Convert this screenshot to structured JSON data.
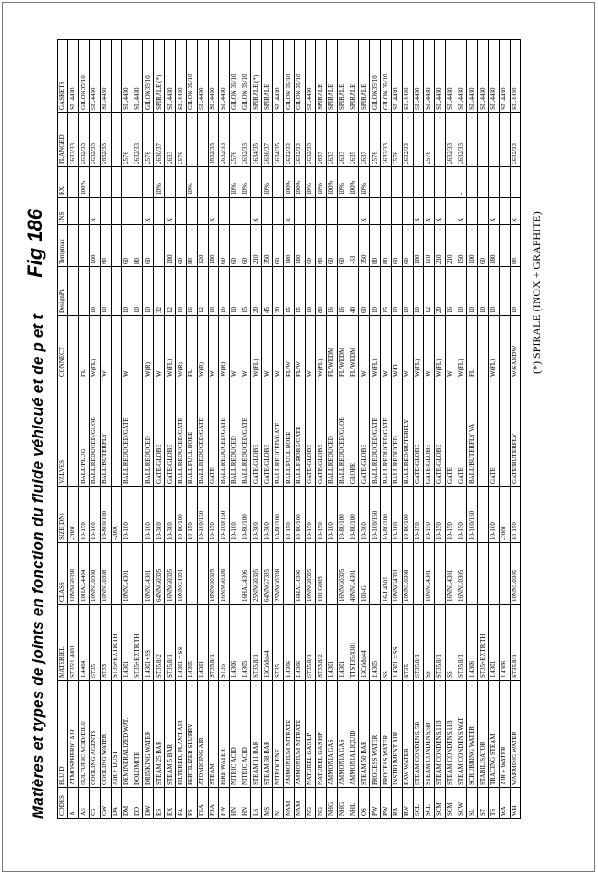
{
  "title": "Matières et types de joints en fonction du fluide véhicué et de p et t",
  "fig_label": "Fig 186",
  "footnote": "(*) SPIRALE (INOX + GRAPHITE)",
  "columns": [
    "CODES",
    "FLUID",
    "MATERIEL",
    "CLASS",
    "SIZE(DN)",
    "VALVES",
    "CONNECT",
    "DesignPr.",
    "Tempmax",
    "INS",
    "RX",
    "FLANGED",
    "GASKETS"
  ],
  "rows": [
    [
      "A",
      "ATMOSPHERIC AIR",
      "ST35/1.4301",
      "10NNG0308",
      "-2000",
      "",
      "",
      "",
      "",
      "",
      "",
      "2632/33",
      "SIL4430"
    ],
    [
      "AS",
      "SULFURIC ACID/DILU",
      "1.4404",
      "10HAL4404",
      "10-150",
      "BALL/PLUG",
      "FL",
      "",
      "",
      "",
      "100%",
      "2632/33",
      "GILON35/10"
    ],
    [
      "CS",
      "COOLING AGENTS",
      "ST35",
      "10NNL0308",
      "10-100",
      "BALL REDUCED/GLOB",
      "W(FL)",
      "10",
      "100",
      "X",
      "",
      "2632/33",
      "SIL4430"
    ],
    [
      "CW",
      "COOLING WATER",
      "ST35",
      "10NNL0308",
      "10-800/100",
      "BALL/BUTERFLY",
      "W",
      "10",
      "60",
      "",
      "",
      "2632/33",
      "SIL4430"
    ],
    [
      "DA",
      "AIR + DUST",
      "ST35+EXTR.TH",
      "",
      "-2000",
      "",
      "",
      "",
      "",
      "",
      "",
      "",
      ""
    ],
    [
      "DM",
      "DEMINERALIZED WAT.",
      "1.4301",
      "10NNL4301",
      "10-100",
      "BALL REDUCED/GATE",
      "W",
      "10",
      "60",
      "",
      "",
      "2576",
      "SIL4430"
    ],
    [
      "DO",
      "DOLOMITE",
      "ST35+EXTR.TH",
      "",
      "",
      "",
      "",
      "10",
      "80",
      "",
      "",
      "2632/33",
      "SIL4430"
    ],
    [
      "DW",
      "DRINKING WATER",
      "1.4301+SS",
      "10NNL4301",
      "10-100",
      "BALL REDUCED",
      "W(R)",
      "10",
      "60",
      "X",
      "",
      "2576",
      "GILON35/10"
    ],
    [
      "ES",
      "STEAM 25 BAR",
      "ST35.8/2",
      "64NNG0305",
      "10-300",
      "GATE-GLOBE",
      "W",
      "32",
      "",
      "",
      "10%",
      "2630/37",
      "SPIRALE (*)"
    ],
    [
      "EX",
      "STEAM 5 BAR",
      "ST35.8/1",
      "16NNG0305",
      "10-300",
      "GATE-GLOBE",
      "W(FL)",
      "12",
      "180",
      "X",
      "",
      "2633",
      "SIL4430"
    ],
    [
      "FA",
      "FILTERED, PLANT AIR",
      "1.4301 = SS",
      "10NNG4301",
      "10-80/100",
      "BALL REDUCED/GATE",
      "W(R)",
      "10",
      "60",
      "",
      "",
      "2576",
      "SIL4430"
    ],
    [
      "FS",
      "FERTILIZER SLURRY",
      "1.4305",
      "",
      "10-150",
      "BALL FULL BORE",
      "FL",
      "16",
      "80",
      "",
      "10%",
      "",
      "GILON 35/10"
    ],
    [
      "FSA",
      "ATOMICING AIR",
      "1.4301",
      "",
      "10-100/150",
      "BALL REDUCED/GATE",
      "W(R)",
      "12",
      "120",
      "",
      "",
      "",
      "SIL4430"
    ],
    [
      "FSA",
      "STEAM",
      "ST35.8/1",
      "16NNG0305",
      "10-150",
      "GATE",
      "W",
      "16",
      "180",
      "X",
      "",
      "1632/33",
      "SIL4430"
    ],
    [
      "FW",
      "FIRE WATER",
      "ST35",
      "16NNG0308",
      "10-100/150",
      "BALL REDUCED/GATE",
      "W(R)",
      "16",
      "60",
      "",
      "",
      "2632/33",
      "SIL4430"
    ],
    [
      "HN",
      "NITRIC ACID",
      "1.4306",
      "",
      "10-100",
      "BALL REDUCED",
      "W",
      "10",
      "60",
      "",
      "10%",
      "2576",
      "GILON 35/10"
    ],
    [
      "HN",
      "NITRIC ACID",
      "1.4305",
      "16HAL4306",
      "10-80/100",
      "BALL REDUCED/GATE",
      "W",
      "15",
      "60",
      "",
      "10%",
      "2632/33",
      "GILON 35/10"
    ],
    [
      "LS",
      "STEAM 11 BAR",
      "ST35.8/1",
      "25NNG0305",
      "10-300",
      "GATE-GLOBE",
      "W(FL)",
      "20",
      "210",
      "X",
      "",
      "3634/35",
      "SPIRALE (*)"
    ],
    [
      "MS",
      "STEAM 38 BAR",
      "13CrMo44",
      "64NNG7335",
      "10-300",
      "GATE-GLOBE",
      "W",
      "45",
      "350",
      "",
      "10%",
      "2636/37",
      "SPIRALE"
    ],
    [
      "N",
      "NITROGENE",
      "ST35",
      "25NNG0308",
      "10-80/100",
      "BALL REUCED/GATE",
      "W",
      "20",
      "60",
      "",
      "",
      "2634/35",
      "SIL4430"
    ],
    [
      "NAM",
      "AMMONIUM NITRATE",
      "1.4306",
      "",
      "10-150",
      "BALL FULL BORE",
      "FL/W",
      "15",
      "180",
      "X",
      "100%",
      "2632/33",
      "GILON 35/10"
    ],
    [
      "NAM",
      "AMMONIUM NITRATE",
      "1.4306",
      "16HAL4306",
      "10-80/100",
      "BALL F.BORE/GATE",
      "FL/W",
      "15",
      "180",
      "",
      "100%",
      "2632/33",
      "GILON 35/10"
    ],
    [
      "NG",
      "NATUREL GAS LP",
      "ST35.8/1",
      "10NNG0305",
      "10-150",
      "GATE-GLOBE",
      "W",
      "10",
      "60",
      "",
      "10%",
      "2632/33",
      "SIL4430"
    ],
    [
      "NG",
      "NATUREL GAS HP",
      "ST35.8/2",
      "100 G005",
      "10-150",
      "GATE-GLOBE",
      "W(FL)",
      "80",
      "60",
      "",
      "10%",
      "2637",
      "SPIRALE"
    ],
    [
      "NHG",
      "AMMONIA GAS",
      "1.4301",
      "",
      "10-100",
      "BALL REDUCED",
      "FL/WEDM",
      "16",
      "60",
      "",
      "100%",
      "2633",
      "SPIRALE"
    ],
    [
      "NHG",
      "AMMONIA GAS",
      "1.4301",
      "16NNG0305",
      "10-80/100",
      "BALL REDUCED/GLOB",
      "FL/WEDM",
      "16",
      "60",
      "",
      "10%",
      "2633",
      "SPIRALE"
    ],
    [
      "NHL",
      "AMMONIA LIQUID",
      "TTST35/4301",
      "40NNL4301",
      "10-80/100",
      "GLOBE",
      "FL/WEDM",
      "40",
      "-33",
      "",
      "100%",
      "2635",
      "SPIRALE"
    ],
    [
      "OS",
      "STEAM 50 BAR",
      "13CrMo44",
      "100-G",
      "10-300",
      "GATE-GLOBE",
      "W",
      "60",
      "350",
      "X",
      "10%",
      "2637",
      "SPIRALE"
    ],
    [
      "PW",
      "PROCESS WATER",
      "1.4305",
      "",
      "10-100/150",
      "BALL REDUCED/GATE",
      "W(FL)",
      "10",
      "80",
      "",
      "",
      "2576",
      "GILON35/10"
    ],
    [
      "PW",
      "PROCESS WATER",
      "SS",
      "16-L4301",
      "10-80/100",
      "BALL REDUCED/GATE",
      "W",
      "15",
      "80",
      "",
      "",
      "2632/33",
      "GILON 35/10"
    ],
    [
      "RA",
      "INSTRUMENT AIR",
      "1.4301 = SS",
      "10NNG4301",
      "10-100",
      "BALL REDUCED",
      "W/D",
      "10",
      "60",
      "",
      "",
      "2576",
      "SIL4430"
    ],
    [
      "RW",
      "RAW WATER",
      "ST35",
      "10NNL0308",
      "10-80/100",
      "BALL RED/BUTERFLY",
      "W",
      "10",
      "60",
      "",
      "",
      "2632/33",
      "SIL4430"
    ],
    [
      "SCL",
      "STEAM CONDENS. 5B",
      "ST35.8/1",
      "",
      "10-150",
      "GATE-GLOBE",
      "W(FL)",
      "10",
      "180",
      "X",
      "",
      "",
      "SIL4430"
    ],
    [
      "SCL",
      "STEAM CONDENS.5B",
      "SS",
      "10NNL4301",
      "10-150",
      "GATE-GLOBE",
      "W",
      "12",
      "110",
      "X",
      "",
      "2576",
      "SIL4430"
    ],
    [
      "SCM",
      "STEAM CONDENS.11B",
      "ST35.8/1",
      "",
      "10-150",
      "GATE-GLOBE",
      "W(FL)",
      "20",
      "210",
      "X",
      "",
      "",
      "SIL4430"
    ],
    [
      "SCM",
      "STEAM CONDENS.11B",
      "SS",
      "16NNL4301",
      "10-150",
      "GATE",
      "W",
      "16",
      "210",
      "",
      "",
      "2632/33",
      "SIL4430"
    ],
    [
      "SCW",
      "STEAM CONDENS.WAT",
      "ST35.8/1",
      "16NNL0305",
      "10-150",
      "GATE",
      "W(FL)",
      "10",
      "150",
      "X",
      "-",
      "2632/33",
      "SIL4430"
    ],
    [
      "SL",
      "SCRUBBING WATER",
      "1.4306",
      "",
      "10-100/150",
      "BALL/BUTERFLY VA",
      "FL",
      "10",
      "100",
      "",
      "",
      "",
      "SIL4430"
    ],
    [
      "ST",
      "STABILISATOR",
      "ST35+EXTR.TH",
      "",
      "",
      "",
      "",
      "10",
      "60",
      "",
      "",
      "",
      "SIL4430"
    ],
    [
      "TS",
      "TRACING STEAM",
      "1.4301",
      "",
      "10-100",
      "GATE",
      "W(FL)",
      "10",
      "180",
      "X",
      "",
      "",
      "SIL4430"
    ],
    [
      "WA",
      "AIR + WATER",
      "1.4306",
      "",
      "-2000",
      "",
      "",
      "",
      "",
      "",
      "",
      "",
      "SIL4430"
    ],
    [
      "WH",
      "WARMING WATER",
      "ST35.8/1",
      "10NNL0305",
      "10-150",
      "GATE/BUTERFLY",
      "W/SANDW",
      "10",
      "90",
      "X",
      "",
      "2632/33",
      "SIL4430"
    ]
  ]
}
